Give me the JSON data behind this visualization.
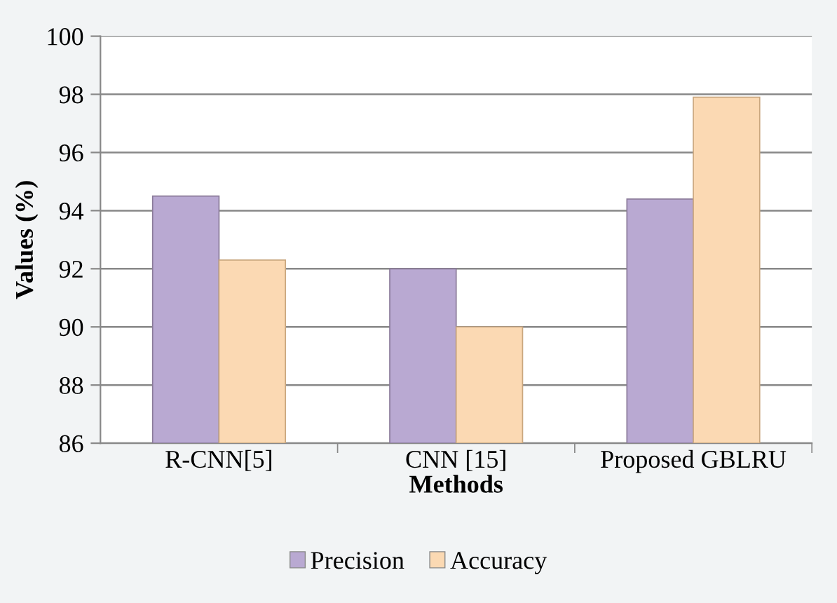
{
  "chart_data": {
    "type": "bar",
    "xlabel": "Methods",
    "ylabel": "Values (%)",
    "categories": [
      "R-CNN[5]",
      "CNN [15]",
      "Proposed GBLRU"
    ],
    "series": [
      {
        "name": "Precision",
        "color": "#b9a9d2",
        "values": [
          94.5,
          92.0,
          94.4
        ]
      },
      {
        "name": "Accuracy",
        "color": "#fbd9b3",
        "values": [
          92.3,
          90.0,
          97.9
        ]
      }
    ],
    "ylim": [
      86,
      100
    ],
    "yticks": [
      86,
      88,
      90,
      92,
      94,
      96,
      98,
      100
    ],
    "grid": "y",
    "legend": "bottom"
  }
}
